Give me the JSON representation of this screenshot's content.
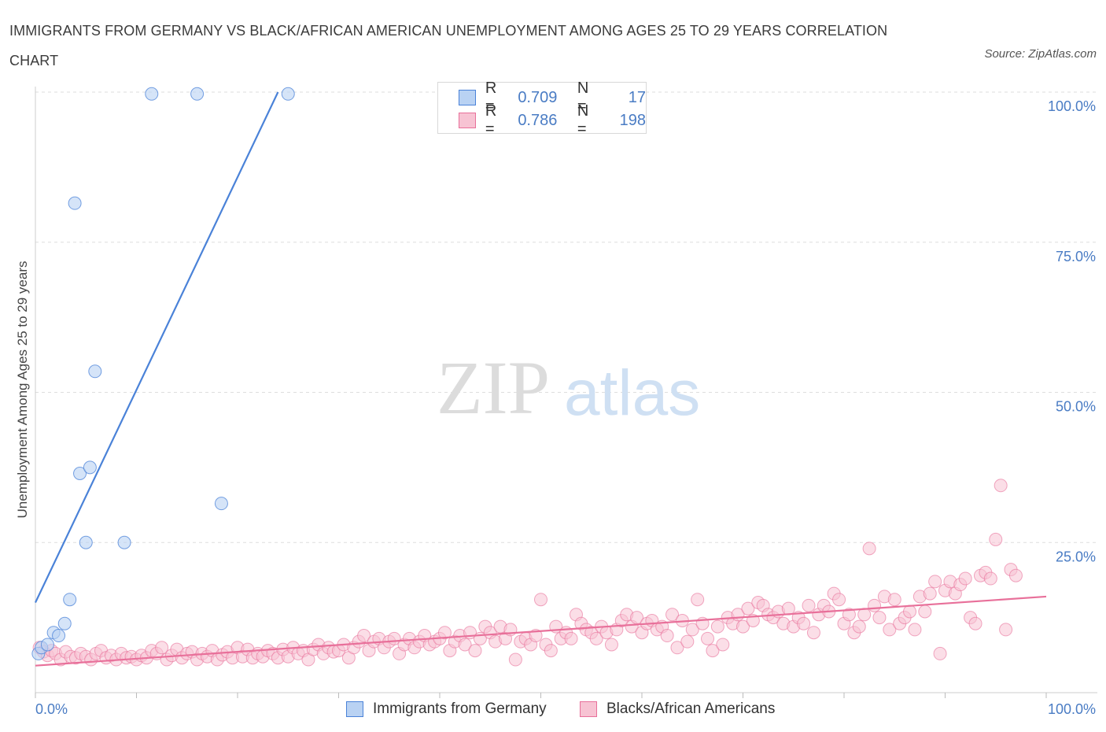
{
  "title": "IMMIGRANTS FROM GERMANY VS BLACK/AFRICAN AMERICAN UNEMPLOYMENT AMONG AGES 25 TO 29 YEARS CORRELATION CHART",
  "source": "Source: ZipAtlas.com",
  "watermark": {
    "zip": "ZIP",
    "atlas": "atlas"
  },
  "colors": {
    "blue": "#4a82d8",
    "blue_fill": "#b9d2f3",
    "pink": "#e8709a",
    "pink_fill": "#f7c3d3",
    "axis_text": "#4a7cc4"
  },
  "legend": {
    "rows": [
      {
        "r_label": "R =",
        "r_value": "0.709",
        "n_label": "N =",
        "n_value": "17"
      },
      {
        "r_label": "R =",
        "r_value": "0.786",
        "n_label": "N =",
        "n_value": "198"
      }
    ]
  },
  "bottom_legend": {
    "series1": "Immigrants from Germany",
    "series2": "Blacks/African Americans"
  },
  "chart_data": {
    "type": "scatter",
    "xlabel": "",
    "ylabel": "Unemployment Among Ages 25 to 29 years",
    "xlim": [
      0,
      100
    ],
    "ylim": [
      0,
      100
    ],
    "x_tick_labels": [
      "0.0%",
      "100.0%"
    ],
    "y_tick_labels": [
      "25.0%",
      "50.0%",
      "75.0%",
      "100.0%"
    ],
    "y_ticks": [
      25,
      50,
      75,
      100
    ],
    "grid": true,
    "series": [
      {
        "name": "Immigrants from Germany",
        "R": 0.709,
        "N": 17,
        "points": [
          [
            0.3,
            6.5
          ],
          [
            0.6,
            7.5
          ],
          [
            1.2,
            8.0
          ],
          [
            1.8,
            10.0
          ],
          [
            2.3,
            9.5
          ],
          [
            2.9,
            11.5
          ],
          [
            3.4,
            15.5
          ],
          [
            3.9,
            81.5
          ],
          [
            4.4,
            36.5
          ],
          [
            5.0,
            25.0
          ],
          [
            5.4,
            37.5
          ],
          [
            5.9,
            53.5
          ],
          [
            8.8,
            25.0
          ],
          [
            11.5,
            99.7
          ],
          [
            16.0,
            99.7
          ],
          [
            18.4,
            31.5
          ],
          [
            25.0,
            99.7
          ]
        ],
        "trend": [
          [
            0,
            15
          ],
          [
            24,
            100
          ]
        ]
      },
      {
        "name": "Blacks/African Americans",
        "R": 0.786,
        "N": 198,
        "points": [
          [
            0.4,
            7.5
          ],
          [
            0.8,
            6.8
          ],
          [
            1.2,
            6.2
          ],
          [
            1.6,
            7.0
          ],
          [
            2.0,
            6.5
          ],
          [
            2.5,
            5.5
          ],
          [
            3.0,
            6.8
          ],
          [
            3.5,
            6.0
          ],
          [
            4.0,
            5.8
          ],
          [
            4.5,
            6.5
          ],
          [
            5.0,
            6.0
          ],
          [
            5.5,
            5.5
          ],
          [
            6.0,
            6.5
          ],
          [
            6.5,
            7.0
          ],
          [
            7.0,
            5.8
          ],
          [
            7.5,
            6.2
          ],
          [
            8.0,
            5.5
          ],
          [
            8.5,
            6.5
          ],
          [
            9.0,
            5.8
          ],
          [
            9.5,
            6.0
          ],
          [
            10.0,
            5.5
          ],
          [
            10.5,
            6.2
          ],
          [
            11.0,
            5.8
          ],
          [
            11.5,
            7.0
          ],
          [
            12.0,
            6.5
          ],
          [
            12.5,
            7.5
          ],
          [
            13.0,
            5.5
          ],
          [
            13.5,
            6.2
          ],
          [
            14.0,
            7.2
          ],
          [
            14.5,
            5.8
          ],
          [
            15.0,
            6.5
          ],
          [
            15.5,
            6.8
          ],
          [
            16.0,
            5.5
          ],
          [
            16.5,
            6.5
          ],
          [
            17.0,
            6.0
          ],
          [
            17.5,
            7.0
          ],
          [
            18.0,
            5.5
          ],
          [
            18.5,
            6.3
          ],
          [
            19.0,
            6.8
          ],
          [
            19.5,
            5.8
          ],
          [
            20.0,
            7.5
          ],
          [
            20.5,
            6.0
          ],
          [
            21.0,
            7.2
          ],
          [
            21.5,
            5.8
          ],
          [
            22.0,
            6.5
          ],
          [
            22.5,
            6.0
          ],
          [
            23.0,
            7.0
          ],
          [
            23.5,
            6.5
          ],
          [
            24.0,
            5.8
          ],
          [
            24.5,
            7.2
          ],
          [
            25.0,
            6.0
          ],
          [
            25.5,
            7.5
          ],
          [
            26.0,
            6.5
          ],
          [
            26.5,
            7.0
          ],
          [
            27.0,
            5.5
          ],
          [
            27.5,
            7.2
          ],
          [
            28.0,
            8.0
          ],
          [
            28.5,
            6.5
          ],
          [
            29.0,
            7.5
          ],
          [
            29.5,
            6.8
          ],
          [
            30.0,
            7.0
          ],
          [
            30.5,
            8.0
          ],
          [
            31.0,
            5.8
          ],
          [
            31.5,
            7.5
          ],
          [
            32.0,
            8.5
          ],
          [
            32.5,
            9.5
          ],
          [
            33.0,
            7.0
          ],
          [
            33.5,
            8.5
          ],
          [
            34.0,
            9.0
          ],
          [
            34.5,
            7.5
          ],
          [
            35.0,
            8.5
          ],
          [
            35.5,
            9.0
          ],
          [
            36.0,
            6.5
          ],
          [
            36.5,
            8.0
          ],
          [
            37.0,
            9.0
          ],
          [
            37.5,
            7.5
          ],
          [
            38.0,
            8.5
          ],
          [
            38.5,
            9.5
          ],
          [
            39.0,
            8.0
          ],
          [
            39.5,
            8.5
          ],
          [
            40.0,
            9.0
          ],
          [
            40.5,
            10.0
          ],
          [
            41.0,
            7.0
          ],
          [
            41.5,
            8.5
          ],
          [
            42.0,
            9.5
          ],
          [
            42.5,
            8.0
          ],
          [
            43.0,
            10.0
          ],
          [
            43.5,
            7.0
          ],
          [
            44.0,
            9.0
          ],
          [
            44.5,
            11.0
          ],
          [
            45.0,
            10.0
          ],
          [
            45.5,
            8.5
          ],
          [
            46.0,
            11.0
          ],
          [
            46.5,
            9.0
          ],
          [
            47.0,
            10.5
          ],
          [
            47.5,
            5.5
          ],
          [
            48.0,
            8.5
          ],
          [
            48.5,
            9.0
          ],
          [
            49.0,
            8.0
          ],
          [
            49.5,
            9.5
          ],
          [
            50.0,
            15.5
          ],
          [
            50.5,
            8.0
          ],
          [
            51.0,
            7.0
          ],
          [
            51.5,
            11.0
          ],
          [
            52.0,
            9.0
          ],
          [
            52.5,
            10.0
          ],
          [
            53.0,
            9.0
          ],
          [
            53.5,
            13.0
          ],
          [
            54.0,
            11.5
          ],
          [
            54.5,
            10.5
          ],
          [
            55.0,
            10.0
          ],
          [
            55.5,
            9.0
          ],
          [
            56.0,
            11.0
          ],
          [
            56.5,
            10.0
          ],
          [
            57.0,
            8.0
          ],
          [
            57.5,
            10.5
          ],
          [
            58.0,
            12.0
          ],
          [
            58.5,
            13.0
          ],
          [
            59.0,
            11.0
          ],
          [
            59.5,
            12.5
          ],
          [
            60.0,
            10.0
          ],
          [
            60.5,
            11.5
          ],
          [
            61.0,
            12.0
          ],
          [
            61.5,
            10.5
          ],
          [
            62.0,
            11.0
          ],
          [
            62.5,
            9.5
          ],
          [
            63.0,
            13.0
          ],
          [
            63.5,
            7.5
          ],
          [
            64.0,
            12.0
          ],
          [
            64.5,
            8.5
          ],
          [
            65.0,
            10.5
          ],
          [
            65.5,
            15.5
          ],
          [
            66.0,
            11.5
          ],
          [
            66.5,
            9.0
          ],
          [
            67.0,
            7.0
          ],
          [
            67.5,
            11.0
          ],
          [
            68.0,
            8.0
          ],
          [
            68.5,
            12.5
          ],
          [
            69.0,
            11.5
          ],
          [
            69.5,
            13.0
          ],
          [
            70.0,
            11.0
          ],
          [
            70.5,
            14.0
          ],
          [
            71.0,
            12.0
          ],
          [
            71.5,
            15.0
          ],
          [
            72.0,
            14.5
          ],
          [
            72.5,
            13.0
          ],
          [
            73.0,
            12.5
          ],
          [
            73.5,
            13.5
          ],
          [
            74.0,
            11.5
          ],
          [
            74.5,
            14.0
          ],
          [
            75.0,
            11.0
          ],
          [
            75.5,
            12.5
          ],
          [
            76.0,
            11.5
          ],
          [
            76.5,
            14.5
          ],
          [
            77.0,
            10.0
          ],
          [
            77.5,
            13.0
          ],
          [
            78.0,
            14.5
          ],
          [
            78.5,
            13.5
          ],
          [
            79.0,
            16.5
          ],
          [
            79.5,
            15.5
          ],
          [
            80.0,
            11.5
          ],
          [
            80.5,
            13.0
          ],
          [
            81.0,
            10.0
          ],
          [
            81.5,
            11.0
          ],
          [
            82.0,
            13.0
          ],
          [
            82.5,
            24.0
          ],
          [
            83.0,
            14.5
          ],
          [
            83.5,
            12.5
          ],
          [
            84.0,
            16.0
          ],
          [
            84.5,
            10.5
          ],
          [
            85.0,
            15.5
          ],
          [
            85.5,
            11.5
          ],
          [
            86.0,
            12.5
          ],
          [
            86.5,
            13.5
          ],
          [
            87.0,
            10.5
          ],
          [
            87.5,
            16.0
          ],
          [
            88.0,
            13.5
          ],
          [
            88.5,
            16.5
          ],
          [
            89.0,
            18.5
          ],
          [
            89.5,
            6.5
          ],
          [
            90.0,
            17.0
          ],
          [
            90.5,
            18.5
          ],
          [
            91.0,
            16.5
          ],
          [
            91.5,
            18.0
          ],
          [
            92.0,
            19.0
          ],
          [
            92.5,
            12.5
          ],
          [
            93.0,
            11.5
          ],
          [
            93.5,
            19.5
          ],
          [
            94.0,
            20.0
          ],
          [
            94.5,
            19.0
          ],
          [
            95.0,
            25.5
          ],
          [
            95.5,
            34.5
          ],
          [
            96.0,
            10.5
          ],
          [
            96.5,
            20.5
          ],
          [
            97.0,
            19.5
          ]
        ],
        "trend": [
          [
            0,
            4.5
          ],
          [
            100,
            16
          ]
        ]
      }
    ]
  }
}
